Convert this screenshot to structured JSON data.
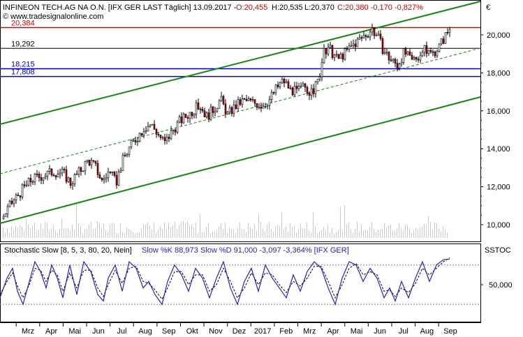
{
  "header": {
    "title": "INFINEON TECH.AG NA O.N. [IFX GER LAST Täglich] 13.09.2017 -",
    "o": "O:20,455",
    "h": "H:20,535",
    "l": "L:20,370",
    "c": "C:20,380 -0,170 -0,827%",
    "watermark": "© www.tradesignalonline.com",
    "currency": "€"
  },
  "indicator": {
    "title": "Stochastic Slow [8, 5, 3, 80, 20, Nein]",
    "k_text": "Slow %K 88,973",
    "d_text": "Slow %D 91,000 -3,097 -3,364% [IFX GER]",
    "tag": "SSTOC",
    "axis_label": "50,000"
  },
  "colors": {
    "up": "#ffffff",
    "down": "#c00000",
    "channel": "#118811",
    "support_red": "#e00000",
    "support_blue": "#0000cc",
    "support_black": "#000000",
    "k_line": "#2222cc",
    "d_line": "#000000",
    "volume": "#c8c8c8"
  },
  "chart_data": {
    "type": "candlestick",
    "instrument": "INFINEON TECH.AG NA O.N.",
    "y_ticks": [
      "20,000",
      "18,000",
      "16,000",
      "14,000",
      "12,000",
      "10,000"
    ],
    "ylim": [
      9.6,
      21.0
    ],
    "x_months": [
      "Mrz",
      "Apr",
      "Mai",
      "Jun",
      "Jul",
      "Aug",
      "Sep",
      "Okt",
      "Nov",
      "Dez",
      "2017",
      "Feb",
      "Mrz",
      "Apr",
      "Mai",
      "Jun",
      "Jul",
      "Aug",
      "Sep"
    ],
    "levels": [
      {
        "label": "20,384",
        "value": 20.384,
        "color": "red"
      },
      {
        "label": "19,292",
        "value": 19.292,
        "color": "black"
      },
      {
        "label": "18,215",
        "value": 18.215,
        "color": "blue"
      },
      {
        "label": "17,808",
        "value": 17.808,
        "color": "blue"
      }
    ],
    "price_path": [
      [
        0,
        10.2
      ],
      [
        15,
        11.1
      ],
      [
        30,
        11.8
      ],
      [
        45,
        12.4
      ],
      [
        60,
        12.6
      ],
      [
        75,
        12.8
      ],
      [
        90,
        12.7
      ],
      [
        100,
        12.2
      ],
      [
        115,
        12.9
      ],
      [
        125,
        13.4
      ],
      [
        135,
        13.1
      ],
      [
        145,
        12.3
      ],
      [
        155,
        12.8
      ],
      [
        165,
        12.2
      ],
      [
        175,
        13.4
      ],
      [
        185,
        14.1
      ],
      [
        195,
        14.6
      ],
      [
        205,
        15.1
      ],
      [
        215,
        15.3
      ],
      [
        225,
        14.8
      ],
      [
        235,
        14.3
      ],
      [
        245,
        14.9
      ],
      [
        255,
        15.4
      ],
      [
        265,
        15.7
      ],
      [
        275,
        16.0
      ],
      [
        285,
        16.3
      ],
      [
        295,
        15.7
      ],
      [
        305,
        16.1
      ],
      [
        315,
        16.6
      ],
      [
        325,
        15.8
      ],
      [
        335,
        16.2
      ],
      [
        345,
        16.5
      ],
      [
        355,
        16.5
      ],
      [
        365,
        16.4
      ],
      [
        375,
        16.3
      ],
      [
        385,
        16.6
      ],
      [
        395,
        17.2
      ],
      [
        405,
        17.6
      ],
      [
        415,
        17.1
      ],
      [
        425,
        17.0
      ],
      [
        435,
        17.3
      ],
      [
        445,
        16.9
      ],
      [
        455,
        17.6
      ],
      [
        462,
        19.0
      ],
      [
        472,
        19.2
      ],
      [
        482,
        18.7
      ],
      [
        492,
        19.0
      ],
      [
        502,
        19.4
      ],
      [
        512,
        19.7
      ],
      [
        522,
        20.0
      ],
      [
        532,
        20.3
      ],
      [
        540,
        19.9
      ],
      [
        548,
        19.2
      ],
      [
        558,
        18.7
      ],
      [
        568,
        18.4
      ],
      [
        578,
        19.1
      ],
      [
        588,
        18.6
      ],
      [
        598,
        18.9
      ],
      [
        608,
        19.2
      ],
      [
        618,
        19.0
      ],
      [
        628,
        19.4
      ],
      [
        636,
        19.9
      ],
      [
        644,
        20.4
      ]
    ],
    "stochastic_k": [
      [
        0,
        30
      ],
      [
        10,
        60
      ],
      [
        18,
        75
      ],
      [
        25,
        40
      ],
      [
        33,
        20
      ],
      [
        42,
        55
      ],
      [
        50,
        85
      ],
      [
        58,
        70
      ],
      [
        66,
        45
      ],
      [
        74,
        80
      ],
      [
        82,
        60
      ],
      [
        90,
        30
      ],
      [
        100,
        80
      ],
      [
        110,
        35
      ],
      [
        120,
        85
      ],
      [
        130,
        70
      ],
      [
        140,
        35
      ],
      [
        148,
        25
      ],
      [
        155,
        60
      ],
      [
        165,
        80
      ],
      [
        175,
        40
      ],
      [
        185,
        85
      ],
      [
        195,
        75
      ],
      [
        205,
        45
      ],
      [
        213,
        55
      ],
      [
        222,
        35
      ],
      [
        232,
        20
      ],
      [
        240,
        55
      ],
      [
        250,
        80
      ],
      [
        260,
        65
      ],
      [
        270,
        40
      ],
      [
        280,
        75
      ],
      [
        290,
        60
      ],
      [
        300,
        30
      ],
      [
        310,
        60
      ],
      [
        320,
        85
      ],
      [
        330,
        45
      ],
      [
        340,
        20
      ],
      [
        350,
        55
      ],
      [
        360,
        75
      ],
      [
        370,
        40
      ],
      [
        380,
        80
      ],
      [
        390,
        60
      ],
      [
        400,
        45
      ],
      [
        410,
        30
      ],
      [
        420,
        65
      ],
      [
        430,
        40
      ],
      [
        440,
        70
      ],
      [
        450,
        85
      ],
      [
        460,
        75
      ],
      [
        470,
        45
      ],
      [
        480,
        20
      ],
      [
        490,
        60
      ],
      [
        500,
        85
      ],
      [
        510,
        80
      ],
      [
        520,
        55
      ],
      [
        530,
        75
      ],
      [
        540,
        60
      ],
      [
        550,
        30
      ],
      [
        558,
        45
      ],
      [
        566,
        25
      ],
      [
        575,
        55
      ],
      [
        585,
        30
      ],
      [
        595,
        60
      ],
      [
        605,
        85
      ],
      [
        615,
        55
      ],
      [
        625,
        80
      ],
      [
        635,
        88
      ],
      [
        644,
        89
      ]
    ],
    "stochastic_d": [
      [
        0,
        35
      ],
      [
        10,
        55
      ],
      [
        18,
        68
      ],
      [
        25,
        48
      ],
      [
        33,
        30
      ],
      [
        42,
        50
      ],
      [
        50,
        75
      ],
      [
        58,
        72
      ],
      [
        66,
        55
      ],
      [
        74,
        72
      ],
      [
        82,
        65
      ],
      [
        90,
        40
      ],
      [
        100,
        68
      ],
      [
        110,
        45
      ],
      [
        120,
        72
      ],
      [
        130,
        72
      ],
      [
        140,
        45
      ],
      [
        148,
        32
      ],
      [
        155,
        50
      ],
      [
        165,
        72
      ],
      [
        175,
        52
      ],
      [
        185,
        75
      ],
      [
        195,
        78
      ],
      [
        205,
        55
      ],
      [
        213,
        52
      ],
      [
        222,
        42
      ],
      [
        232,
        28
      ],
      [
        240,
        45
      ],
      [
        250,
        70
      ],
      [
        260,
        70
      ],
      [
        270,
        50
      ],
      [
        280,
        65
      ],
      [
        290,
        65
      ],
      [
        300,
        40
      ],
      [
        310,
        50
      ],
      [
        320,
        75
      ],
      [
        330,
        55
      ],
      [
        340,
        30
      ],
      [
        350,
        45
      ],
      [
        360,
        68
      ],
      [
        370,
        50
      ],
      [
        380,
        68
      ],
      [
        390,
        65
      ],
      [
        400,
        50
      ],
      [
        410,
        38
      ],
      [
        420,
        55
      ],
      [
        430,
        48
      ],
      [
        440,
        60
      ],
      [
        450,
        78
      ],
      [
        460,
        78
      ],
      [
        470,
        55
      ],
      [
        480,
        30
      ],
      [
        490,
        50
      ],
      [
        500,
        75
      ],
      [
        510,
        82
      ],
      [
        520,
        65
      ],
      [
        530,
        70
      ],
      [
        540,
        65
      ],
      [
        550,
        40
      ],
      [
        558,
        42
      ],
      [
        566,
        32
      ],
      [
        575,
        45
      ],
      [
        585,
        38
      ],
      [
        595,
        52
      ],
      [
        605,
        75
      ],
      [
        615,
        65
      ],
      [
        625,
        75
      ],
      [
        635,
        85
      ],
      [
        644,
        91
      ]
    ],
    "stoch_ylim": [
      0,
      100
    ]
  }
}
